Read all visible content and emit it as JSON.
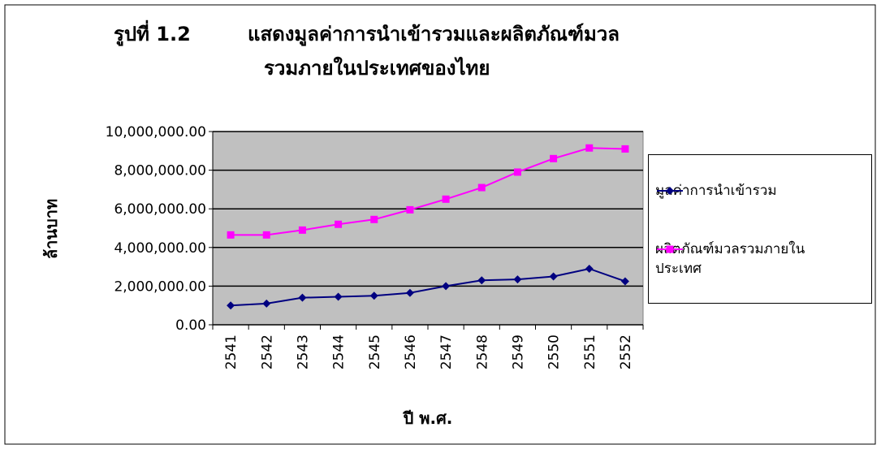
{
  "chart_data": {
    "type": "line",
    "figure_label": "รูปที่ 1.2",
    "title": [
      "แสดงมูลค่าการนำเข้ารวมและผลิตภัณฑ์มวล",
      "รวมภายในประเทศของไทย"
    ],
    "x_label": "ปี พ.ศ.",
    "y_label": "ล้านบาท",
    "categories": [
      "2541",
      "2542",
      "2543",
      "2544",
      "2545",
      "2546",
      "2547",
      "2548",
      "2549",
      "2550",
      "2551",
      "2552"
    ],
    "series": [
      {
        "name": "มูลค่าการนำเข้ารวม",
        "color": "#000080",
        "marker": "diamond",
        "values": [
          1000000,
          1100000,
          1400000,
          1450000,
          1500000,
          1650000,
          2000000,
          2300000,
          2350000,
          2500000,
          2900000,
          2250000
        ]
      },
      {
        "name": "ผลิตภัณฑ์มวลรวมภายในประเทศ",
        "color": "#ff00ff",
        "marker": "square",
        "values": [
          4650000,
          4650000,
          4900000,
          5200000,
          5450000,
          5950000,
          6500000,
          7100000,
          7900000,
          8600000,
          9150000,
          9100000
        ]
      }
    ],
    "ylim": [
      0,
      10000000
    ],
    "yticks": [
      {
        "value": 0,
        "label": "0.00"
      },
      {
        "value": 2000000,
        "label": "2,000,000.00"
      },
      {
        "value": 4000000,
        "label": "4,000,000.00"
      },
      {
        "value": 6000000,
        "label": "6,000,000.00"
      },
      {
        "value": 8000000,
        "label": "8,000,000.00"
      },
      {
        "value": 10000000,
        "label": "10,000,000.00"
      }
    ],
    "grid": true,
    "plot_background": "#c0c0c0",
    "legend": "right"
  }
}
